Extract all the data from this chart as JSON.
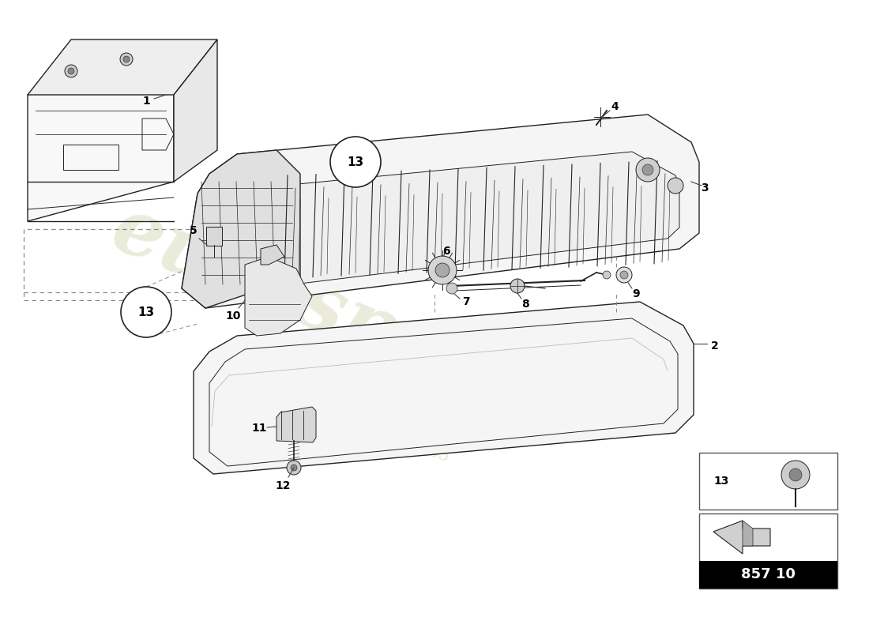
{
  "bg_color": "#ffffff",
  "line_color": "#222222",
  "dashed_color": "#888888",
  "watermark_color1": "#d4d4b0",
  "watermark_color2": "#c8c8a0",
  "part_number": "857 10",
  "part_number_bg": "#000000",
  "part_number_text": "#ffffff",
  "figsize": [
    11.0,
    8.0
  ],
  "dpi": 100
}
